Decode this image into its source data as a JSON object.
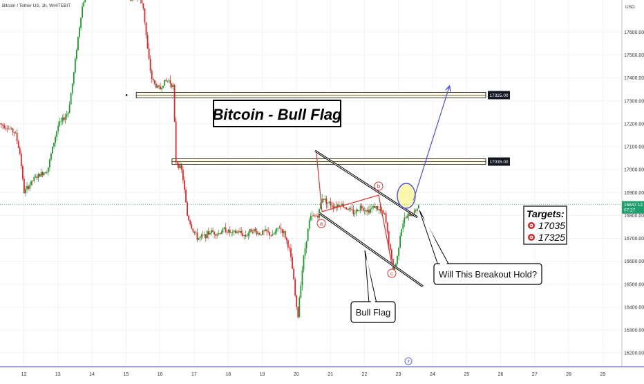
{
  "header": {
    "symbol": "Bitcoin / Tether US, 1h, WHITEBIT",
    "currency": "USD"
  },
  "annotations": {
    "title": "Bitcoin - Bull Flag",
    "breakout_question": "Will This Breakout Hold?",
    "flag_label": "Bull Flag",
    "wave_labels": [
      "a",
      "b",
      "c"
    ],
    "targets_title": "Targets:",
    "targets": [
      "17035",
      "17325"
    ]
  },
  "price_badge": {
    "price": "16847.12",
    "countdown": "07:27"
  },
  "levels": [
    {
      "label": "17325.00",
      "price": 17325
    },
    {
      "label": "17035.00",
      "price": 17035
    }
  ],
  "chart_data": {
    "type": "candlestick",
    "title": "",
    "xlabel": "",
    "ylabel": "",
    "ylim": [
      16140,
      17740
    ],
    "y_ticks": [
      "17600.00",
      "17500.00",
      "17400.00",
      "17300.00",
      "17200.00",
      "17100.00",
      "17000.00",
      "16900.00",
      "16800.00",
      "16700.00",
      "16600.00",
      "16500.00",
      "16400.00",
      "16300.00",
      "16200.00"
    ],
    "y_tick_values": [
      17600,
      17500,
      17400,
      17300,
      17200,
      17100,
      17000,
      16900,
      16800,
      16700,
      16600,
      16500,
      16400,
      16300,
      16200
    ],
    "x_ticks": [
      "12",
      "13",
      "14",
      "15",
      "16",
      "17",
      "18",
      "19",
      "20",
      "21",
      "22",
      "23",
      "24",
      "25",
      "26",
      "27",
      "28",
      "29"
    ],
    "x_tick_day": [
      12,
      13,
      14,
      15,
      16,
      17,
      18,
      19,
      20,
      21,
      22,
      23,
      24,
      25,
      26,
      27,
      28,
      29
    ],
    "x_domain": [
      11.3,
      29.56
    ],
    "current_price": 16847.12,
    "candles_close_path": [
      [
        11.3,
        17200
      ],
      [
        11.5,
        17185
      ],
      [
        11.75,
        17160
      ],
      [
        11.9,
        17060
      ],
      [
        12.0,
        16900
      ],
      [
        12.15,
        16930
      ],
      [
        12.3,
        16960
      ],
      [
        12.5,
        16980
      ],
      [
        12.7,
        17000
      ],
      [
        12.85,
        17100
      ],
      [
        13.0,
        17190
      ],
      [
        13.15,
        17220
      ],
      [
        13.3,
        17250
      ],
      [
        13.45,
        17400
      ],
      [
        13.55,
        17530
      ],
      [
        13.7,
        17700
      ],
      [
        13.8,
        17760
      ],
      [
        14.0,
        17780
      ],
      [
        14.4,
        17790
      ],
      [
        14.75,
        17780
      ],
      [
        15.0,
        17770
      ],
      [
        15.1,
        17740
      ],
      [
        15.3,
        17760
      ],
      [
        15.5,
        17720
      ],
      [
        15.65,
        17500
      ],
      [
        15.75,
        17400
      ],
      [
        15.85,
        17370
      ],
      [
        16.0,
        17350
      ],
      [
        16.1,
        17380
      ],
      [
        16.25,
        17390
      ],
      [
        16.4,
        17360
      ],
      [
        16.45,
        17040
      ],
      [
        16.55,
        17020
      ],
      [
        16.65,
        16990
      ],
      [
        16.8,
        16800
      ],
      [
        16.95,
        16740
      ],
      [
        17.1,
        16700
      ],
      [
        17.3,
        16710
      ],
      [
        17.5,
        16730
      ],
      [
        17.7,
        16720
      ],
      [
        17.9,
        16740
      ],
      [
        18.1,
        16720
      ],
      [
        18.3,
        16730
      ],
      [
        18.5,
        16710
      ],
      [
        18.7,
        16740
      ],
      [
        18.9,
        16720
      ],
      [
        19.1,
        16730
      ],
      [
        19.3,
        16710
      ],
      [
        19.5,
        16750
      ],
      [
        19.65,
        16720
      ],
      [
        19.8,
        16650
      ],
      [
        19.9,
        16550
      ],
      [
        20.0,
        16400
      ],
      [
        20.05,
        16360
      ],
      [
        20.1,
        16460
      ],
      [
        20.2,
        16600
      ],
      [
        20.3,
        16700
      ],
      [
        20.4,
        16790
      ],
      [
        20.6,
        16800
      ],
      [
        20.65,
        16800
      ],
      [
        20.75,
        16880
      ],
      [
        20.9,
        16860
      ],
      [
        21.1,
        16840
      ],
      [
        21.3,
        16850
      ],
      [
        21.5,
        16830
      ],
      [
        21.7,
        16810
      ],
      [
        21.9,
        16840
      ],
      [
        22.1,
        16820
      ],
      [
        22.3,
        16840
      ],
      [
        22.45,
        16820
      ],
      [
        22.6,
        16800
      ],
      [
        22.75,
        16650
      ],
      [
        22.85,
        16560
      ],
      [
        22.95,
        16600
      ],
      [
        23.05,
        16720
      ],
      [
        23.15,
        16780
      ],
      [
        23.3,
        16800
      ],
      [
        23.45,
        16810
      ],
      [
        23.6,
        16847
      ]
    ]
  }
}
